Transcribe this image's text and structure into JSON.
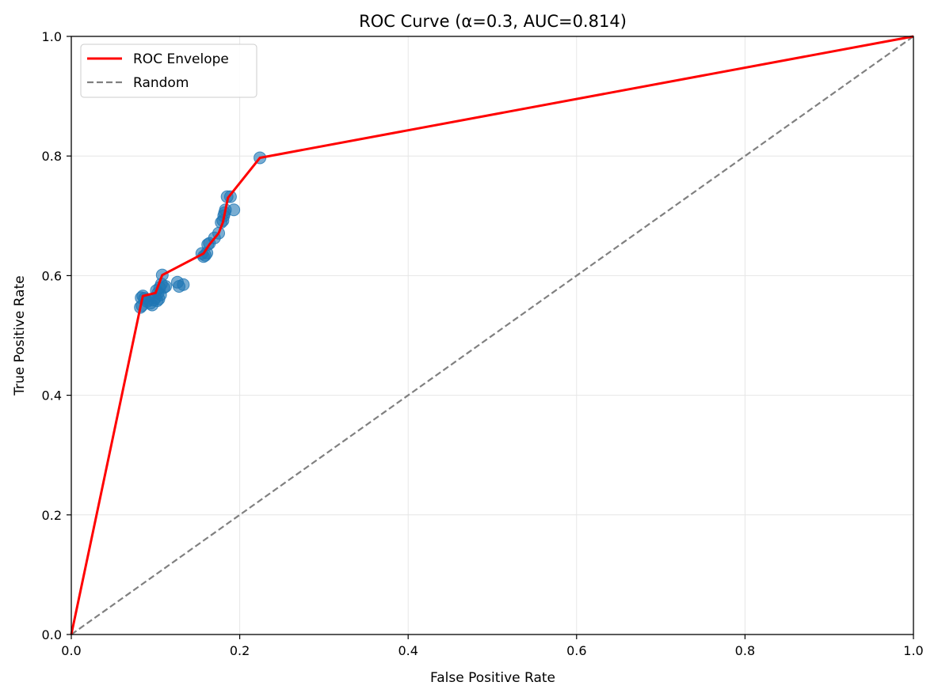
{
  "chart_data": {
    "type": "line",
    "title": "ROC Curve (α=0.3, AUC=0.814)",
    "xlabel": "False Positive Rate",
    "ylabel": "True Positive Rate",
    "xlim": [
      0,
      1
    ],
    "ylim": [
      0,
      1
    ],
    "xticks": [
      0.0,
      0.2,
      0.4,
      0.6,
      0.8,
      1.0
    ],
    "yticks": [
      0.0,
      0.2,
      0.4,
      0.6,
      0.8,
      1.0
    ],
    "xtick_labels": [
      "0.0",
      "0.2",
      "0.4",
      "0.6",
      "0.8",
      "1.0"
    ],
    "ytick_labels": [
      "0.0",
      "0.2",
      "0.4",
      "0.6",
      "0.8",
      "1.0"
    ],
    "grid": true,
    "legend_position": "top-left",
    "series": [
      {
        "name": "ROC Envelope",
        "kind": "line",
        "color": "#ff0000",
        "style": "solid",
        "points": [
          [
            0.0,
            0.0
          ],
          [
            0.082,
            0.547
          ],
          [
            0.085,
            0.566
          ],
          [
            0.1,
            0.571
          ],
          [
            0.108,
            0.601
          ],
          [
            0.157,
            0.637
          ],
          [
            0.164,
            0.652
          ],
          [
            0.175,
            0.671
          ],
          [
            0.18,
            0.689
          ],
          [
            0.186,
            0.73
          ],
          [
            0.224,
            0.797
          ],
          [
            1.0,
            1.0
          ]
        ]
      },
      {
        "name": "Random",
        "kind": "line",
        "color": "#808080",
        "style": "dashed",
        "points": [
          [
            0.0,
            0.0
          ],
          [
            1.0,
            1.0
          ]
        ]
      },
      {
        "kind": "scatter",
        "color": "#1f77b4",
        "opacity": 0.6,
        "points": [
          [
            0.082,
            0.547
          ],
          [
            0.084,
            0.55
          ],
          [
            0.083,
            0.563
          ],
          [
            0.085,
            0.566
          ],
          [
            0.087,
            0.562
          ],
          [
            0.09,
            0.557
          ],
          [
            0.092,
            0.56
          ],
          [
            0.094,
            0.554
          ],
          [
            0.096,
            0.551
          ],
          [
            0.098,
            0.559
          ],
          [
            0.1,
            0.563
          ],
          [
            0.102,
            0.558
          ],
          [
            0.104,
            0.561
          ],
          [
            0.103,
            0.571
          ],
          [
            0.106,
            0.568
          ],
          [
            0.101,
            0.575
          ],
          [
            0.105,
            0.58
          ],
          [
            0.107,
            0.586
          ],
          [
            0.108,
            0.601
          ],
          [
            0.11,
            0.58
          ],
          [
            0.112,
            0.582
          ],
          [
            0.126,
            0.589
          ],
          [
            0.128,
            0.582
          ],
          [
            0.133,
            0.585
          ],
          [
            0.155,
            0.637
          ],
          [
            0.157,
            0.632
          ],
          [
            0.159,
            0.634
          ],
          [
            0.161,
            0.638
          ],
          [
            0.162,
            0.652
          ],
          [
            0.164,
            0.654
          ],
          [
            0.17,
            0.663
          ],
          [
            0.175,
            0.671
          ],
          [
            0.178,
            0.689
          ],
          [
            0.18,
            0.692
          ],
          [
            0.181,
            0.7
          ],
          [
            0.182,
            0.705
          ],
          [
            0.183,
            0.71
          ],
          [
            0.185,
            0.732
          ],
          [
            0.189,
            0.732
          ],
          [
            0.193,
            0.71
          ],
          [
            0.224,
            0.797
          ]
        ]
      }
    ],
    "legend": [
      {
        "label": "ROC Envelope",
        "color": "#ff0000",
        "style": "solid"
      },
      {
        "label": "Random",
        "color": "#808080",
        "style": "dashed"
      }
    ]
  }
}
